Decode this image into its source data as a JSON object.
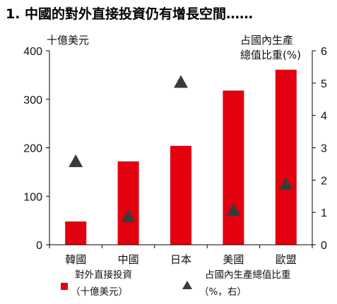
{
  "chart_data": {
    "type": "bar",
    "title": "1. 中國的對外直接投資仍有增長空間……",
    "left_axis_label": "十億美元",
    "right_axis_label_line1": "占國內生產",
    "right_axis_label_line2": "總值比重(%)",
    "categories": [
      "韓國",
      "中國",
      "日本",
      "美國",
      "歐盟"
    ],
    "ylim_left": [
      0,
      400
    ],
    "yticks_left": [
      0,
      100,
      200,
      300,
      400
    ],
    "ylim_right": [
      0,
      6
    ],
    "yticks_right": [
      0,
      1,
      2,
      3,
      4,
      5,
      6
    ],
    "series": [
      {
        "name": "對外直接投資（十億美元）",
        "legend_line1": "對外直接投資",
        "legend_line2": "（十億美元）",
        "type": "bar",
        "axis": "left",
        "color": "#e3000f",
        "values": [
          48,
          172,
          204,
          318,
          361
        ]
      },
      {
        "name": "占國內生產總值比重（%，右）",
        "legend_line1": "占國內生產總值比重",
        "legend_line2": "（%，右）",
        "type": "scatter",
        "marker": "triangle",
        "axis": "right",
        "color": "#3a3a3a",
        "values": [
          2.6,
          0.9,
          5.05,
          1.1,
          1.9
        ]
      }
    ],
    "grid": false,
    "legend_placement": "bottom"
  }
}
